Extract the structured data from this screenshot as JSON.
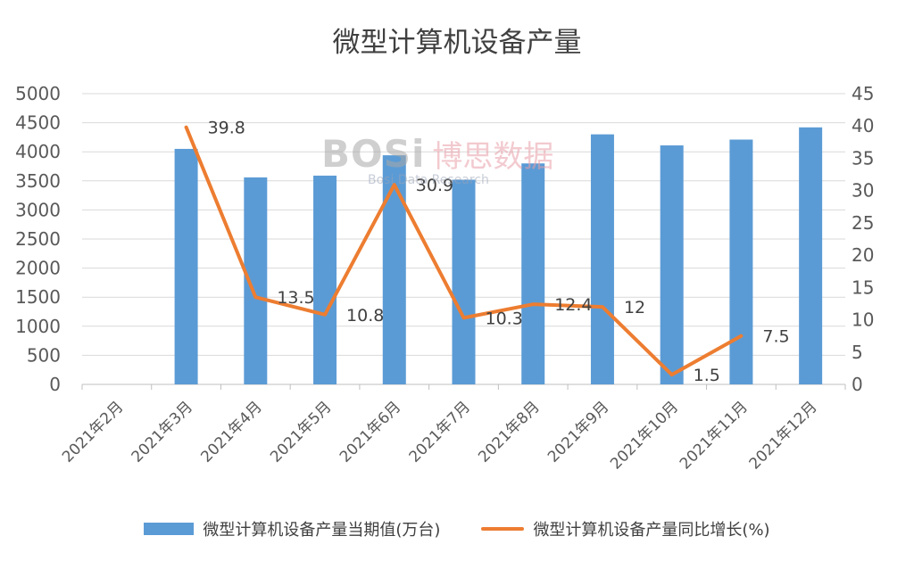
{
  "chart_data": {
    "type": "bar",
    "title": "微型计算机设备产量",
    "categories": [
      "2021年2月",
      "2021年3月",
      "2021年4月",
      "2021年5月",
      "2021年6月",
      "2021年7月",
      "2021年8月",
      "2021年9月",
      "2021年10月",
      "2021年11月",
      "2021年12月"
    ],
    "series": [
      {
        "name": "微型计算机设备产量当期值(万台)",
        "type": "bar",
        "axis": "left",
        "color": "#5b9bd5",
        "values": [
          null,
          4050,
          3560,
          3590,
          3940,
          3520,
          3800,
          4300,
          4110,
          4210,
          4420
        ]
      },
      {
        "name": "微型计算机设备产量同比增长(%)",
        "type": "line",
        "axis": "right",
        "color": "#ed7d31",
        "values": [
          null,
          39.8,
          13.5,
          10.8,
          30.9,
          10.3,
          12.4,
          12,
          1.5,
          7.5,
          null
        ],
        "labels": [
          "",
          "39.8",
          "13.5",
          "10.8",
          "30.9",
          "10.3",
          "12.4",
          "12",
          "1.5",
          "7.5",
          ""
        ]
      }
    ],
    "y_left": {
      "min": 0,
      "max": 5000,
      "step": 500,
      "ticks": [
        "0",
        "500",
        "1000",
        "1500",
        "2000",
        "2500",
        "3000",
        "3500",
        "4000",
        "4500",
        "5000"
      ]
    },
    "y_right": {
      "min": 0,
      "max": 45,
      "step": 5,
      "ticks": [
        "0",
        "5",
        "10",
        "15",
        "20",
        "25",
        "30",
        "35",
        "40",
        "45"
      ]
    },
    "grid": true,
    "legend_position": "bottom"
  },
  "watermark": {
    "logo": "BOSi",
    "cn": "博思数据",
    "en": "Bosi Data Research"
  }
}
